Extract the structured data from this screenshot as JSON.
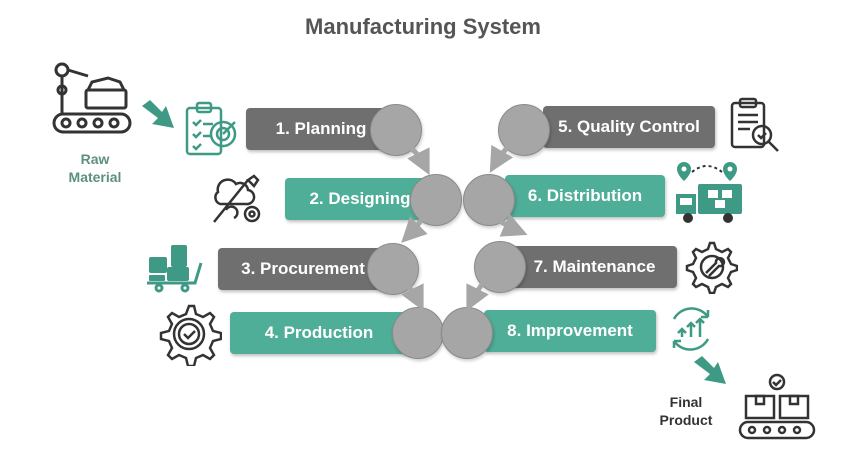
{
  "title": "Manufacturing System",
  "start_label_line1": "Raw",
  "start_label_line2": "Material",
  "end_label_line1": "Final",
  "end_label_line2": "Product",
  "steps": [
    {
      "label": "1. Planning"
    },
    {
      "label": "2. Designing"
    },
    {
      "label": "3. Procurement"
    },
    {
      "label": "4. Production"
    },
    {
      "label": "5. Quality Control"
    },
    {
      "label": "6. Distribution"
    },
    {
      "label": "7. Maintenance"
    },
    {
      "label": "8. Improvement"
    }
  ],
  "colors": {
    "title": "#555555",
    "step_gray": "#6f6f6f",
    "step_teal": "#4fae97",
    "connector_circle": "#a6a6a6",
    "accent_teal": "#3f9a85",
    "icon_dark": "#333333"
  },
  "icons": {
    "raw_material": "factory-machine-icon",
    "planning": "clipboard-target-icon",
    "designing": "design-tools-icon",
    "procurement": "cart-boxes-icon",
    "production": "gear-check-icon",
    "quality_control": "document-magnifier-icon",
    "distribution": "delivery-truck-icon",
    "maintenance": "gear-wrench-icon",
    "improvement": "recycle-growth-icon",
    "final_product": "conveyor-boxes-icon"
  }
}
